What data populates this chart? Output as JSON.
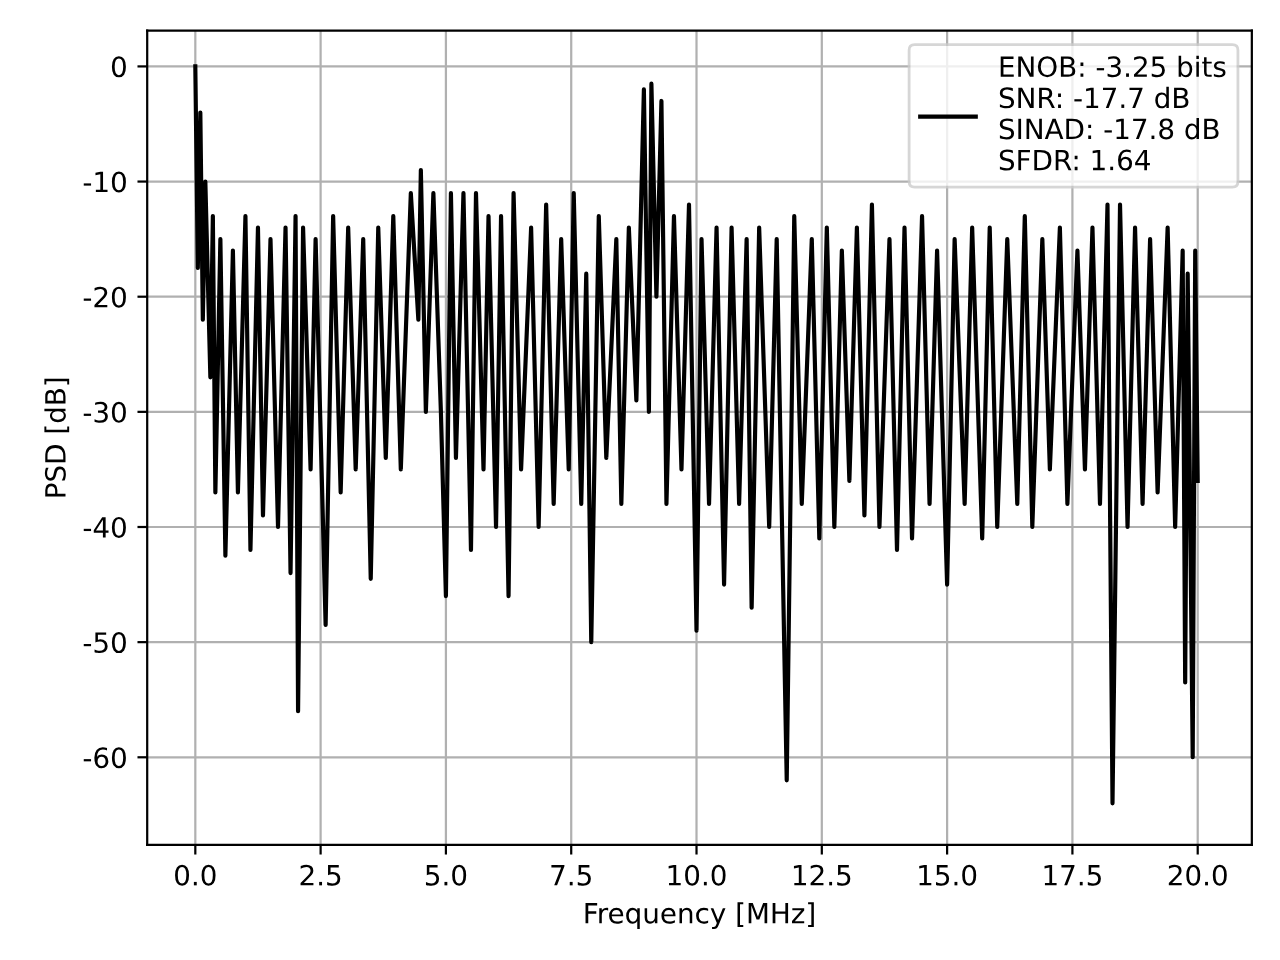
{
  "chart_data": {
    "type": "line",
    "xlabel": "Frequency [MHz]",
    "ylabel": "PSD [dB]",
    "xlim": [
      -0.96,
      21.08
    ],
    "ylim": [
      -67.6,
      3.1
    ],
    "xticks": [
      {
        "value": 0,
        "label": "0.0"
      },
      {
        "value": 2.5,
        "label": "2.5"
      },
      {
        "value": 5,
        "label": "5.0"
      },
      {
        "value": 7.5,
        "label": "7.5"
      },
      {
        "value": 10,
        "label": "10.0"
      },
      {
        "value": 12.5,
        "label": "12.5"
      },
      {
        "value": 15,
        "label": "15.0"
      },
      {
        "value": 17.5,
        "label": "17.5"
      },
      {
        "value": 20,
        "label": "20.0"
      }
    ],
    "yticks": [
      -60,
      -50,
      -40,
      -30,
      -20,
      -10,
      0
    ],
    "grid": true,
    "legend": "top right",
    "marker": "none",
    "line_style": "solid",
    "series": [
      {
        "name": "ENOB: -3.25 bits\nSNR: -17.7 dB\nSINAD: -17.8 dB\nSFDR: 1.64",
        "color": "#000000",
        "x": [
          0,
          0.05,
          0.1,
          0.15,
          0.2,
          0.3,
          0.35,
          0.4,
          0.5,
          0.6,
          0.75,
          0.85,
          1.0,
          1.1,
          1.25,
          1.35,
          1.5,
          1.65,
          1.8,
          1.9,
          2.0,
          2.05,
          2.15,
          2.3,
          2.4,
          2.6,
          2.75,
          2.9,
          3.05,
          3.2,
          3.35,
          3.5,
          3.65,
          3.8,
          3.95,
          4.1,
          4.3,
          4.45,
          4.5,
          4.6,
          4.75,
          4.9,
          5.0,
          5.1,
          5.2,
          5.35,
          5.5,
          5.6,
          5.75,
          5.85,
          6.0,
          6.1,
          6.25,
          6.35,
          6.5,
          6.7,
          6.85,
          7.0,
          7.15,
          7.3,
          7.45,
          7.55,
          7.7,
          7.8,
          7.9,
          8.05,
          8.2,
          8.4,
          8.5,
          8.65,
          8.8,
          8.95,
          9.05,
          9.1,
          9.2,
          9.3,
          9.4,
          9.55,
          9.7,
          9.85,
          10.0,
          10.1,
          10.25,
          10.4,
          10.55,
          10.7,
          10.85,
          11.0,
          11.1,
          11.25,
          11.45,
          11.6,
          11.8,
          11.95,
          12.1,
          12.3,
          12.45,
          12.6,
          12.75,
          12.9,
          13.05,
          13.2,
          13.35,
          13.5,
          13.65,
          13.85,
          14.0,
          14.15,
          14.3,
          14.5,
          14.65,
          14.8,
          15.0,
          15.15,
          15.35,
          15.5,
          15.7,
          15.85,
          16.0,
          16.2,
          16.4,
          16.55,
          16.7,
          16.9,
          17.05,
          17.25,
          17.4,
          17.6,
          17.75,
          17.9,
          18.05,
          18.2,
          18.3,
          18.45,
          18.6,
          18.75,
          18.9,
          19.05,
          19.2,
          19.4,
          19.55,
          19.7,
          19.75,
          19.8,
          19.9,
          19.95,
          20.0
        ],
        "values": [
          0,
          -17.5,
          -4,
          -22,
          -10,
          -27,
          -13,
          -37,
          -15,
          -42.5,
          -16,
          -37,
          -13,
          -42,
          -14,
          -39,
          -15,
          -40,
          -14,
          -44,
          -13,
          -56,
          -14,
          -35,
          -15,
          -48.5,
          -13,
          -37,
          -14,
          -35,
          -15,
          -44.5,
          -14,
          -34,
          -13,
          -35,
          -11,
          -22,
          -9,
          -30,
          -11,
          -30,
          -46,
          -11,
          -34,
          -11,
          -42,
          -11,
          -35,
          -13,
          -40,
          -13,
          -46,
          -11,
          -35,
          -14,
          -40,
          -12,
          -38,
          -15,
          -35,
          -11,
          -38,
          -18,
          -50,
          -13,
          -34,
          -15,
          -38,
          -14,
          -29,
          -2,
          -30,
          -1.5,
          -20,
          -3,
          -38,
          -13,
          -35,
          -12,
          -49,
          -15,
          -38,
          -14,
          -45,
          -14,
          -38,
          -15,
          -47,
          -14,
          -40,
          -15,
          -62,
          -13,
          -38,
          -15,
          -41,
          -14,
          -40,
          -16,
          -36,
          -14,
          -39,
          -12,
          -40,
          -15,
          -42,
          -14,
          -41,
          -13,
          -38,
          -16,
          -45,
          -15,
          -38,
          -14,
          -41,
          -14,
          -40,
          -15,
          -38,
          -13,
          -40,
          -15,
          -35,
          -14,
          -38,
          -16,
          -35,
          -14,
          -38,
          -12,
          -64,
          -12,
          -40,
          -14,
          -38,
          -15,
          -37,
          -14,
          -40,
          -16,
          -53.5,
          -18,
          -60,
          -16,
          -36
        ]
      }
    ]
  }
}
